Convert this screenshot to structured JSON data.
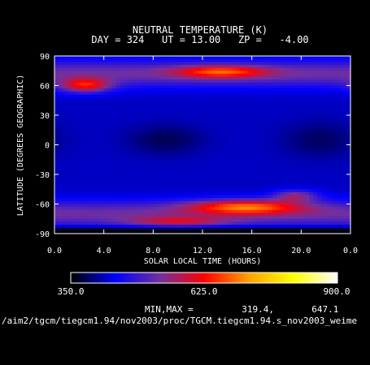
{
  "chart_data": {
    "type": "heatmap",
    "title": "NEUTRAL TEMPERATURE (K)",
    "subtitle": "DAY = 324   UT = 13.00   ZP =   -4.00",
    "xlabel": "SOLAR LOCAL TIME (HOURS)",
    "ylabel": "LATITUDE (DEGREES GEOGRAPHIC)",
    "x_ticks": [
      "0.0",
      "4.0",
      "8.0",
      "12.0",
      "16.0",
      "20.0",
      "0.0"
    ],
    "y_ticks": [
      "90",
      "60",
      "30",
      "0",
      "-30",
      "-60",
      "-90"
    ],
    "xlim": [
      0,
      24
    ],
    "ylim": [
      -90,
      90
    ],
    "colorbar": {
      "min_label": "350.0",
      "mid_label": "625.0",
      "max_label": "900.0",
      "range": [
        350,
        900
      ],
      "stops": [
        "#000000",
        "#0000ff",
        "#7030a0",
        "#ff0000",
        "#ffa000",
        "#ffff00",
        "#ffffff"
      ]
    },
    "minmax_text": "MIN,MAX =         319.4,       647.1",
    "source_path": "/aim2/tgcm/tiegcm1.94/nov2003/proc/TGCM.tiegcm1.94.s_nov2003_weime",
    "field": {
      "base": 420,
      "features": [
        {
          "kind": "band",
          "lat_center": 72,
          "lat_width": 13,
          "amp": 110
        },
        {
          "kind": "band",
          "lat_center": -70,
          "lat_width": 13,
          "amp": 110
        },
        {
          "kind": "blob",
          "lt": 2.5,
          "lat": 60,
          "dlt": 2.0,
          "dlat": 7,
          "amp": 180
        },
        {
          "kind": "blob",
          "lt": 13.5,
          "lat": 74,
          "dlt": 3.5,
          "dlat": 6,
          "amp": 160
        },
        {
          "kind": "blob",
          "lt": 15.5,
          "lat": -63,
          "dlt": 4.5,
          "dlat": 7,
          "amp": 200
        },
        {
          "kind": "blob",
          "lt": 19.5,
          "lat": -52,
          "dlt": 1.8,
          "dlat": 6,
          "amp": 120
        },
        {
          "kind": "blob",
          "lt": 10.0,
          "lat": -78,
          "dlt": 4.0,
          "dlat": 5,
          "amp": 110
        },
        {
          "kind": "blob",
          "lt": 9.0,
          "lat": 5,
          "dlt": 3.0,
          "dlat": 15,
          "amp": -40
        },
        {
          "kind": "blob",
          "lt": 21.5,
          "lat": 5,
          "dlt": 3.0,
          "dlat": 18,
          "amp": -35
        },
        {
          "kind": "pole",
          "lat_edge": -80,
          "amp": -110
        }
      ]
    }
  }
}
